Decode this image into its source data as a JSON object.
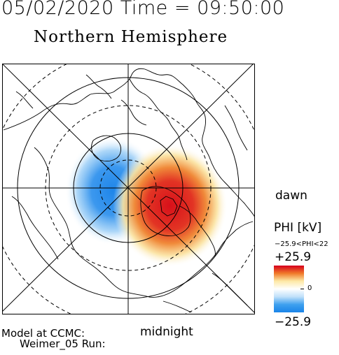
{
  "header": {
    "datetime": "05/02/2020 Time = 09:50:00",
    "hemisphere": "Northern Hemisphere"
  },
  "map": {
    "labels": {
      "dawn": "dawn",
      "midnight": "midnight"
    },
    "potential_pattern": {
      "negative_cell_color": "#2f8df0",
      "positive_cell_color": "#d8101a",
      "neutral_color": "#ffffff"
    },
    "layers": [
      "polar-grid",
      "coastlines",
      "potential-contours"
    ]
  },
  "model_info": {
    "line1": "Model at CCMC:",
    "line2": "Weimer_05 Run:"
  },
  "colorbar": {
    "title": "PHI [kV]",
    "range_text": "−25.9<PHI<22",
    "max_label": "+25.9",
    "zero_label": "0",
    "min_label": "−25.9",
    "colors": [
      "#d6001c",
      "#f07a2a",
      "#fde9a6",
      "#ffffff",
      "#bfe0fa",
      "#3ea0ef",
      "#1a84e8"
    ]
  }
}
